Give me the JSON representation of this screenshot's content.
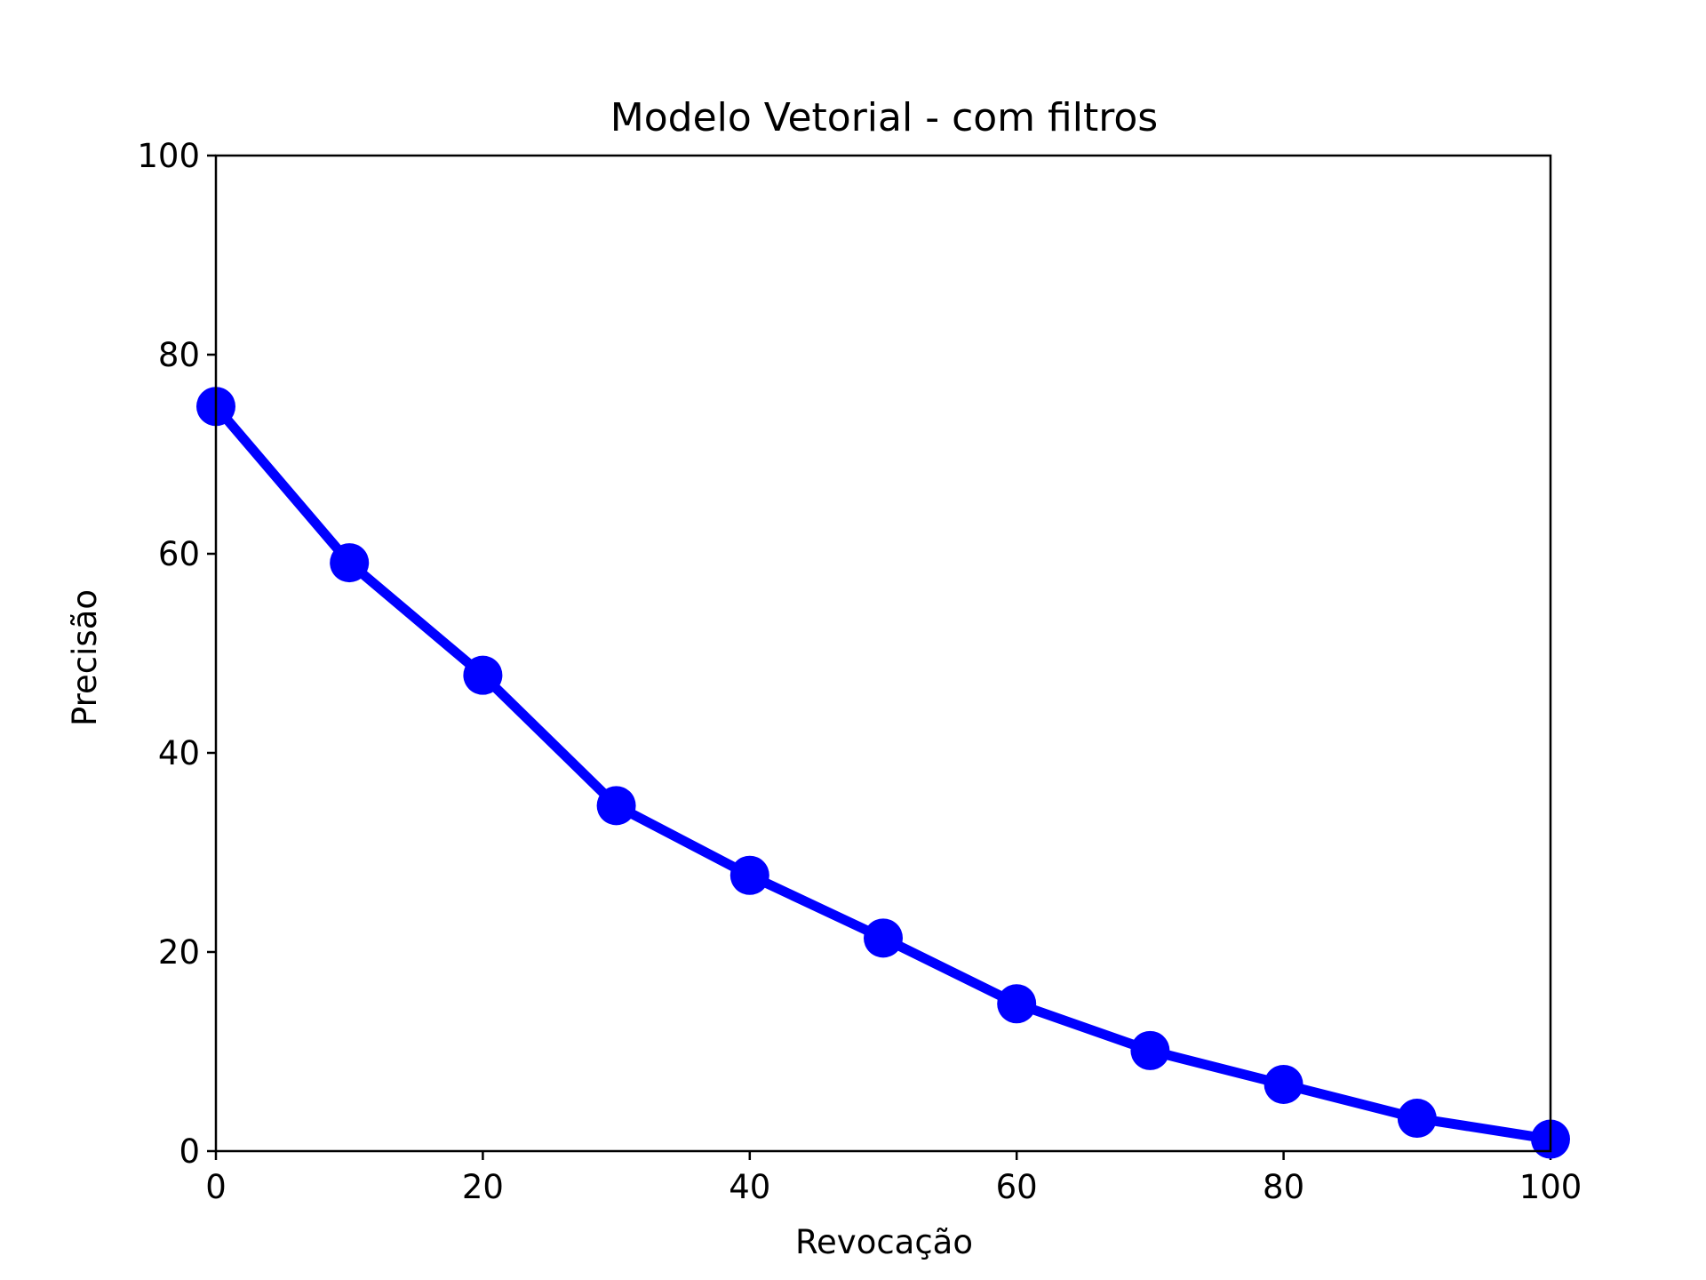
{
  "chart_data": {
    "type": "line",
    "title": "Modelo Vetorial - com filtros",
    "xlabel": "Revocação",
    "ylabel": "Precisão",
    "xlim": [
      0,
      100
    ],
    "ylim": [
      0,
      100
    ],
    "xticks": [
      "0",
      "20",
      "40",
      "60",
      "80",
      "100"
    ],
    "yticks": [
      "0",
      "20",
      "40",
      "60",
      "80",
      "100"
    ],
    "grid": false,
    "legend": "none",
    "series": [
      {
        "x": [
          0,
          10,
          20,
          30,
          40,
          50,
          60,
          70,
          80,
          90,
          100
        ],
        "y": [
          74.8,
          59.1,
          47.8,
          34.7,
          27.7,
          21.4,
          14.8,
          10.1,
          6.7,
          3.3,
          1.2
        ],
        "color": "#0000ff",
        "marker": "circle"
      }
    ]
  }
}
